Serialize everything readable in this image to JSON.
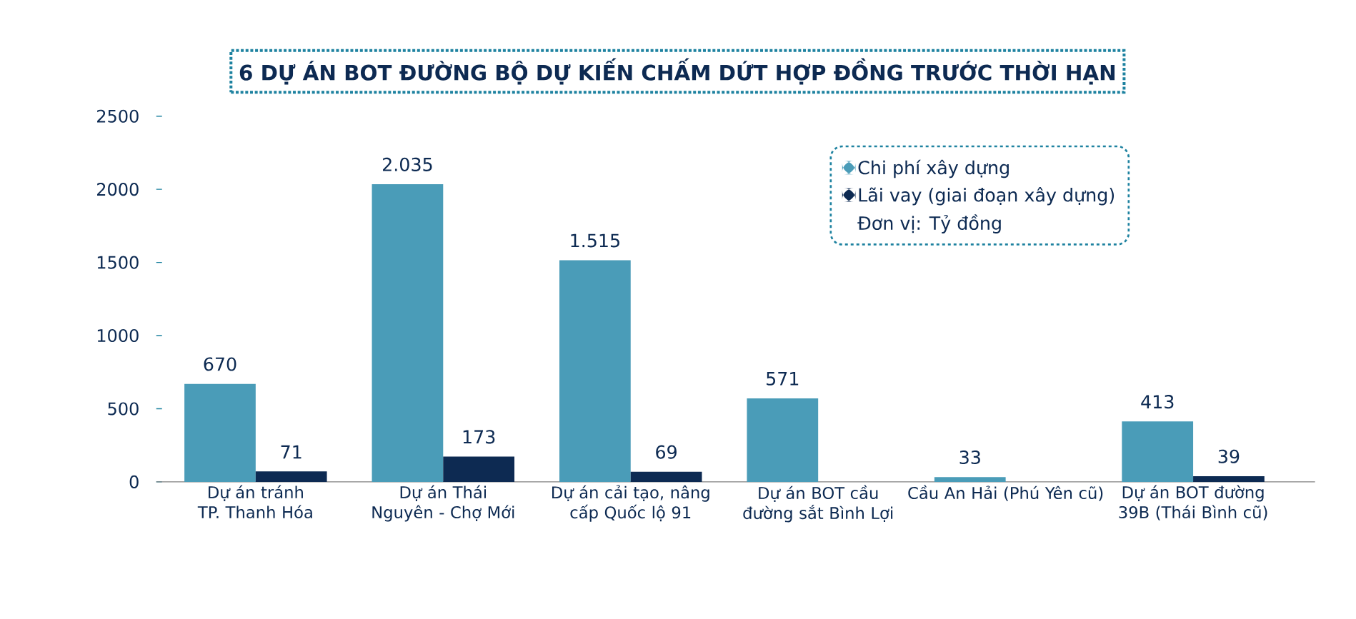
{
  "chart_data": {
    "type": "bar",
    "title": "6 DỰ ÁN BOT ĐƯỜNG BỘ DỰ KIẾN CHẤM DỨT HỢP ĐỒNG TRƯỚC THỜI HẠN",
    "categories": [
      "Dự án tránh TP. Thanh Hóa",
      "Dự án Thái Nguyên - Chợ Mới",
      "Dự án cải tạo, nâng cấp Quốc lộ 91",
      "Dự án BOT cầu đường sắt Bình Lợi",
      "Cầu An Hải (Phú Yên cũ)",
      "Dự án BOT đường 39B (Thái Bình cũ)"
    ],
    "series": [
      {
        "name": "Chi phí xây dựng",
        "color": "#4a9cb8",
        "values": [
          670,
          2035,
          1515,
          571,
          33,
          413
        ],
        "value_labels": [
          "670",
          "2.035",
          "1.515",
          "571",
          "33",
          "413"
        ]
      },
      {
        "name": "Lãi vay (giai đoạn xây dựng)",
        "color": "#0d2a52",
        "values": [
          71,
          173,
          69,
          null,
          null,
          39
        ],
        "value_labels": [
          "71",
          "173",
          "69",
          null,
          null,
          "39"
        ]
      }
    ],
    "annotations": [
      "Đơn vị: Tỷ đồng"
    ],
    "ylim": [
      0,
      2500
    ],
    "yticks": [
      0,
      500,
      1000,
      1500,
      2000,
      2500
    ],
    "grid": false,
    "legend": "top right"
  }
}
